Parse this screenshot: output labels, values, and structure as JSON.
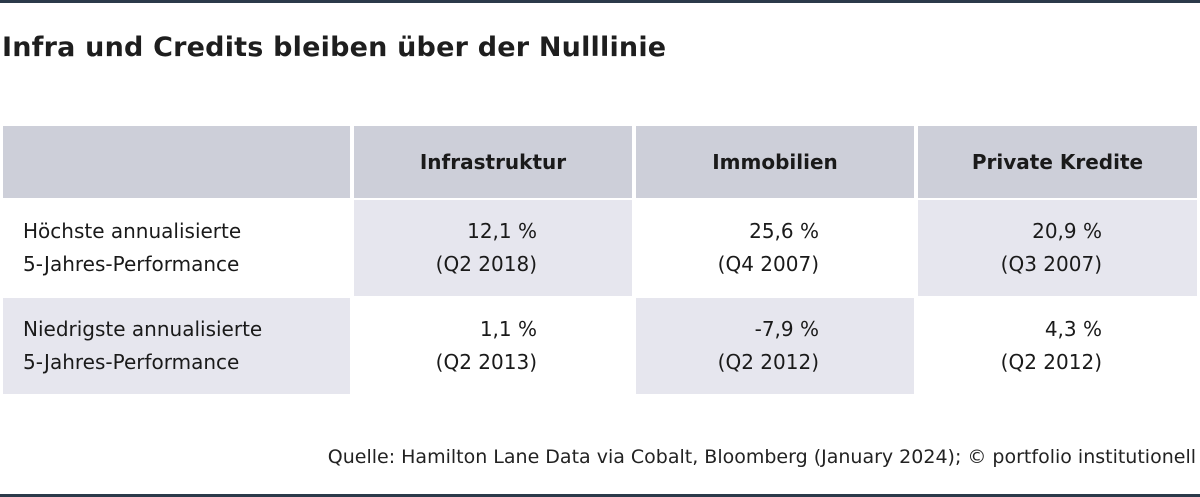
{
  "title": "Infra und Credits bleiben über der Nulllinie",
  "table": {
    "headers": [
      "",
      "Infrastruktur",
      "Immobilien",
      "Private Kredite"
    ],
    "rows": [
      {
        "label_line1": "Höchste annualisierte",
        "label_line2": "5-Jahres-Performance",
        "cells": [
          {
            "value": "12,1 %",
            "period": "(Q2 2018)"
          },
          {
            "value": "25,6 %",
            "period": "(Q4 2007)"
          },
          {
            "value": "20,9 %",
            "period": "(Q3 2007)"
          }
        ]
      },
      {
        "label_line1": "Niedrigste annualisierte",
        "label_line2": "5-Jahres-Performance",
        "cells": [
          {
            "value": "1,1 %",
            "period": "(Q2 2013)"
          },
          {
            "value": "-7,9 %",
            "period": "(Q2 2012)"
          },
          {
            "value": "4,3 %",
            "period": "(Q2 2012)"
          }
        ]
      }
    ]
  },
  "source": "Quelle: Hamilton Lane Data via Cobalt, Bloomberg (January 2024); © portfolio institutionell",
  "colors": {
    "header_bg": "#cdcfd9",
    "shade_bg": "#e6e6ee",
    "rule": "#2b3a4a"
  }
}
